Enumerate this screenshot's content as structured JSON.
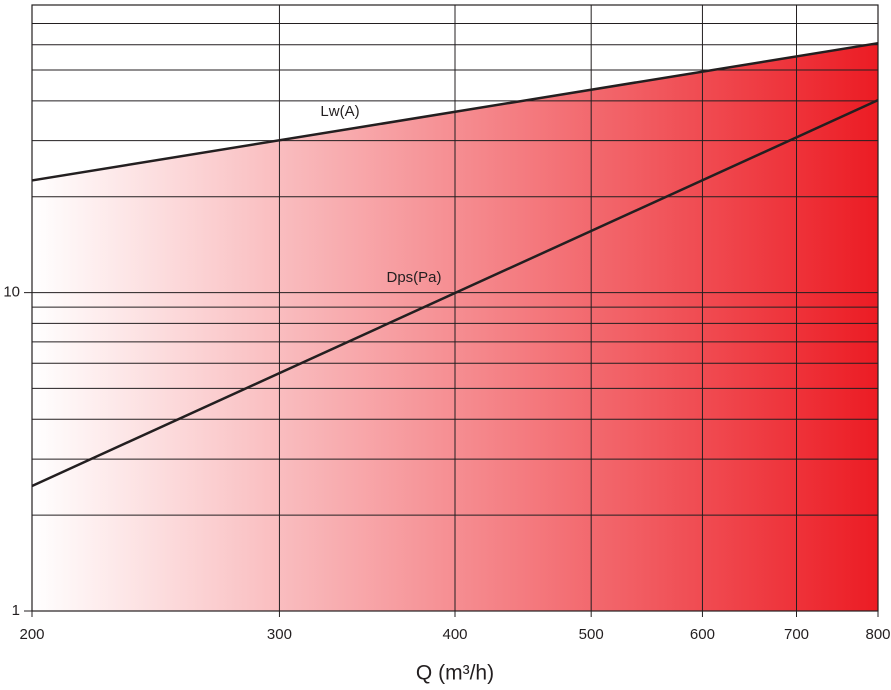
{
  "chart_data": {
    "type": "line",
    "log_x": true,
    "log_y": true,
    "x_label": "Q (m³/h)",
    "x": [
      200,
      800
    ],
    "series": [
      {
        "name": "Lw(A)",
        "color": "#231f20",
        "values": [
          22.5,
          60.7
        ]
      },
      {
        "name": "Dps(Pa)",
        "color": "#231f20",
        "values": [
          2.47,
          40.2
        ]
      }
    ],
    "xlim": [
      200,
      800
    ],
    "xticks": [
      200,
      300,
      400,
      500,
      600,
      700,
      800
    ],
    "ylim": [
      1,
      80
    ],
    "yticks": [
      1,
      10
    ],
    "y_minor_ticks": [
      2,
      3,
      4,
      5,
      6,
      7,
      8,
      9,
      20,
      30,
      40,
      50,
      60,
      70,
      80
    ],
    "grid": true,
    "fill_colors": [
      "#ffffff",
      "#ec1c24"
    ]
  }
}
